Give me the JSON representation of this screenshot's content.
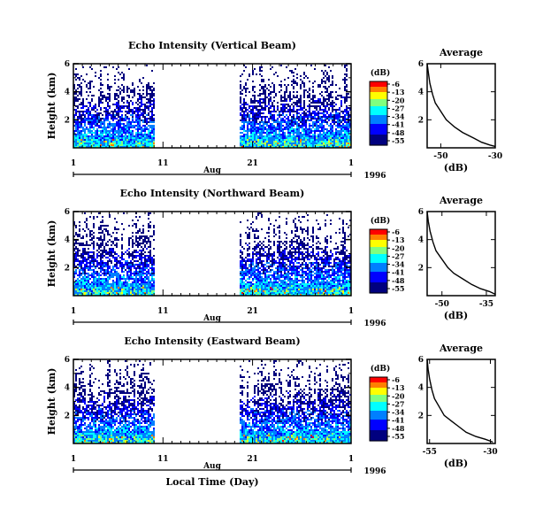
{
  "figure": {
    "xlabel": "Local Time (Day)",
    "month": "Aug",
    "year": "1996",
    "colorbar_unit": "(dB)",
    "colorbar_ticks": [
      "-6",
      "-13",
      "-20",
      "-27",
      "-34",
      "-41",
      "-48",
      "-55"
    ],
    "colors": [
      "#00007f",
      "#0000ff",
      "#007fff",
      "#00ffff",
      "#7fff7f",
      "#ffff00",
      "#ff7f00",
      "#ff0000",
      "#7f0000"
    ]
  },
  "chart_data": [
    {
      "type": "heatmap",
      "title": "Echo Intensity (Vertical Beam)",
      "ylabel": "Height (km)",
      "xticks": [
        "1",
        "11",
        "21",
        "1"
      ],
      "yticks": [
        "6",
        "4",
        "2"
      ],
      "xlim": [
        1,
        32
      ],
      "ylim": [
        0,
        6
      ],
      "data_gap_days": [
        10.2,
        19.5
      ],
      "color_range_db": [
        -55,
        -6
      ],
      "colorbar_ticks": [
        "-6",
        "-13",
        "-20",
        "-27",
        "-34",
        "-41",
        "-48",
        "-55"
      ],
      "colorbar_unit": "(dB)"
    },
    {
      "type": "line",
      "title": "Average",
      "xlabel": "(dB)",
      "xticks": [
        "-50",
        "-30"
      ],
      "yticks": [
        "6",
        "4",
        "2"
      ],
      "xlim": [
        -55,
        -30
      ],
      "ylim": [
        0,
        6
      ],
      "series": [
        {
          "x": [
            -55,
            -54.5,
            -54,
            -53,
            -52,
            -50,
            -48,
            -45,
            -42,
            -38,
            -35,
            -32,
            -30
          ],
          "y": [
            6,
            5.3,
            4.6,
            3.8,
            3.2,
            2.6,
            2.0,
            1.5,
            1.1,
            0.7,
            0.4,
            0.2,
            0.1
          ]
        }
      ]
    },
    {
      "type": "heatmap",
      "title": "Echo Intensity (Northward Beam)",
      "ylabel": "Height (km)",
      "xticks": [
        "1",
        "11",
        "21",
        "1"
      ],
      "yticks": [
        "6",
        "4",
        "2"
      ],
      "xlim": [
        1,
        32
      ],
      "ylim": [
        0,
        6
      ],
      "data_gap_days": [
        10.2,
        19.5
      ],
      "color_range_db": [
        -55,
        -6
      ],
      "colorbar_ticks": [
        "-6",
        "-13",
        "-20",
        "-27",
        "-34",
        "-41",
        "-48",
        "-55"
      ],
      "colorbar_unit": "(dB)"
    },
    {
      "type": "line",
      "title": "Average",
      "xlabel": "(dB)",
      "xticks": [
        "-50",
        "-35"
      ],
      "yticks": [
        "6",
        "4",
        "2"
      ],
      "xlim": [
        -55,
        -32
      ],
      "ylim": [
        0,
        6
      ],
      "series": [
        {
          "x": [
            -55,
            -54.6,
            -54,
            -53,
            -52,
            -50,
            -48,
            -46,
            -43,
            -40,
            -37,
            -34,
            -32
          ],
          "y": [
            6,
            5.3,
            4.6,
            3.8,
            3.2,
            2.6,
            2.0,
            1.6,
            1.2,
            0.8,
            0.5,
            0.3,
            0.1
          ]
        }
      ]
    },
    {
      "type": "heatmap",
      "title": "Echo Intensity (Eastward Beam)",
      "ylabel": "Height (km)",
      "xticks": [
        "1",
        "11",
        "21",
        "1"
      ],
      "yticks": [
        "6",
        "4",
        "2"
      ],
      "xlim": [
        1,
        32
      ],
      "ylim": [
        0,
        6
      ],
      "data_gap_days": [
        10.2,
        19.5
      ],
      "color_range_db": [
        -55,
        -6
      ],
      "colorbar_ticks": [
        "-6",
        "-13",
        "-20",
        "-27",
        "-34",
        "-41",
        "-48",
        "-55"
      ],
      "colorbar_unit": "(dB)"
    },
    {
      "type": "line",
      "title": "Average",
      "xlabel": "(dB)",
      "xticks": [
        "-55",
        "-30"
      ],
      "yticks": [
        "6",
        "4",
        "2"
      ],
      "xlim": [
        -56,
        -28
      ],
      "ylim": [
        0,
        6
      ],
      "series": [
        {
          "x": [
            -56,
            -55.6,
            -55,
            -54,
            -53,
            -51,
            -49,
            -46,
            -43,
            -40,
            -36,
            -32,
            -29
          ],
          "y": [
            6,
            5.3,
            4.6,
            3.8,
            3.2,
            2.6,
            2.0,
            1.6,
            1.2,
            0.8,
            0.5,
            0.3,
            0.1
          ]
        }
      ]
    }
  ]
}
